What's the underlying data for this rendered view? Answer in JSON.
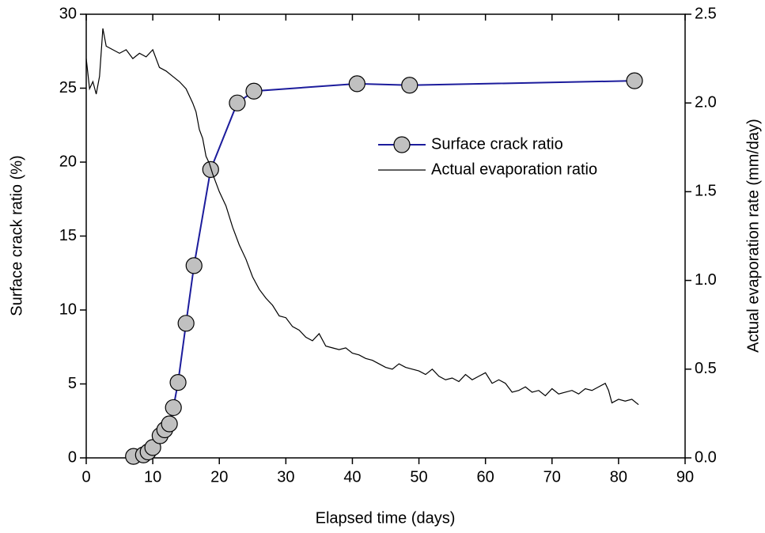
{
  "chart_data": {
    "type": "line",
    "x_label": "Elapsed time (days)",
    "y_label": "Surface crack ratio (%)",
    "y2_label": "Actual evaporation rate (mm/day)",
    "xlim": [
      0,
      90
    ],
    "xticks": [
      0,
      10,
      20,
      30,
      40,
      50,
      60,
      70,
      80,
      90
    ],
    "ylim": [
      0,
      30
    ],
    "yticks": [
      0,
      5,
      10,
      15,
      20,
      25,
      30
    ],
    "y2lim": [
      0,
      2.5
    ],
    "y2ticks": [
      {
        "value": 0,
        "label": "0.0"
      },
      0.5,
      {
        "value": 1,
        "label": "1.0"
      },
      1.5,
      {
        "value": 2,
        "label": "2.0"
      },
      2.5
    ],
    "legend": "upper right",
    "series": [
      {
        "name": "Surface crack ratio",
        "color": "#1c1c9c",
        "marker": "circle",
        "marker_color": "#c0c0c0",
        "x": [
          7.1,
          8.6,
          9.3,
          10.0,
          11.1,
          11.8,
          12.5,
          13.1,
          13.8,
          15.0,
          16.2,
          18.7,
          22.7,
          25.2,
          40.7,
          48.6,
          82.4
        ],
        "values": [
          0.1,
          0.2,
          0.4,
          0.7,
          1.5,
          1.9,
          2.3,
          3.4,
          5.1,
          9.1,
          13.0,
          19.5,
          24.0,
          24.8,
          25.3,
          25.2,
          25.5
        ]
      },
      {
        "name": "Actual evaporation ratio",
        "color": "#000000",
        "axis": "y2",
        "x": [
          0,
          0.5,
          1,
          1.5,
          2,
          2.5,
          3,
          4,
          5,
          6,
          7,
          8,
          9,
          10,
          11,
          12,
          13,
          14,
          15,
          16,
          16.5,
          17,
          17.5,
          18,
          18.5,
          19,
          19.5,
          20,
          21,
          22,
          23,
          24,
          25,
          26,
          27,
          28,
          29,
          30,
          31,
          32,
          33,
          34,
          35,
          36,
          37,
          38,
          39,
          40,
          41,
          42,
          43,
          44,
          45,
          46,
          47,
          48,
          49,
          50,
          51,
          52,
          53,
          54,
          55,
          56,
          57,
          58,
          59,
          60,
          61,
          62,
          63,
          64,
          65,
          66,
          67,
          68,
          69,
          70,
          71,
          72,
          73,
          74,
          75,
          76,
          77,
          78,
          78.5,
          79,
          80,
          81,
          82,
          83
        ],
        "values": [
          2.25,
          2.08,
          2.12,
          2.05,
          2.15,
          2.42,
          2.32,
          2.3,
          2.28,
          2.3,
          2.25,
          2.28,
          2.26,
          2.3,
          2.2,
          2.18,
          2.15,
          2.12,
          2.08,
          2.0,
          1.95,
          1.85,
          1.8,
          1.7,
          1.66,
          1.6,
          1.55,
          1.5,
          1.42,
          1.3,
          1.2,
          1.12,
          1.02,
          0.95,
          0.9,
          0.86,
          0.8,
          0.79,
          0.74,
          0.72,
          0.68,
          0.66,
          0.7,
          0.63,
          0.62,
          0.61,
          0.62,
          0.59,
          0.58,
          0.56,
          0.55,
          0.53,
          0.51,
          0.5,
          0.53,
          0.51,
          0.5,
          0.49,
          0.47,
          0.5,
          0.46,
          0.44,
          0.45,
          0.43,
          0.47,
          0.44,
          0.46,
          0.48,
          0.42,
          0.44,
          0.42,
          0.37,
          0.38,
          0.4,
          0.37,
          0.38,
          0.35,
          0.39,
          0.36,
          0.37,
          0.38,
          0.36,
          0.39,
          0.38,
          0.4,
          0.42,
          0.38,
          0.31,
          0.33,
          0.32,
          0.33,
          0.3
        ]
      }
    ]
  }
}
